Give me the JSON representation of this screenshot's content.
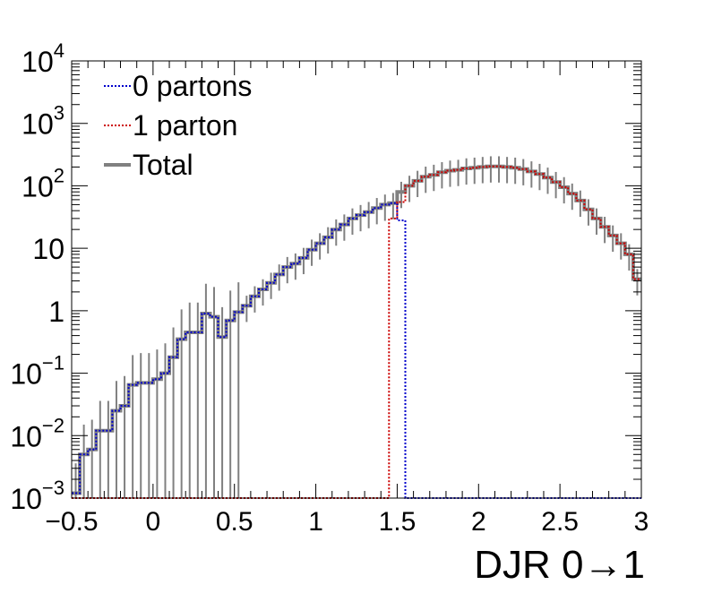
{
  "chart_data": {
    "type": "line",
    "step": true,
    "xlabel": "DJR 0→1",
    "ylabel": "",
    "title": "",
    "xlim": [
      -0.5,
      3.0
    ],
    "ylim": [
      0.001,
      10000
    ],
    "yscale": "log",
    "grid": false,
    "legend_position": "top-left",
    "bin_edges_start": -0.5,
    "bin_width": 0.05,
    "x_ticks": [
      {
        "v": -0.5,
        "label": "−0.5"
      },
      {
        "v": 0,
        "label": "0"
      },
      {
        "v": 0.5,
        "label": "0.5"
      },
      {
        "v": 1,
        "label": "1"
      },
      {
        "v": 1.5,
        "label": "1.5"
      },
      {
        "v": 2,
        "label": "2"
      },
      {
        "v": 2.5,
        "label": "2.5"
      },
      {
        "v": 3,
        "label": "3"
      }
    ],
    "y_ticks": [
      {
        "v": 0.001,
        "base": "10",
        "exp": "−3"
      },
      {
        "v": 0.01,
        "base": "10",
        "exp": "−2"
      },
      {
        "v": 0.1,
        "base": "10",
        "exp": "−1"
      },
      {
        "v": 1,
        "base": "1",
        "exp": ""
      },
      {
        "v": 10,
        "base": "10",
        "exp": ""
      },
      {
        "v": 100,
        "base": "10",
        "exp": "2"
      },
      {
        "v": 1000,
        "base": "10",
        "exp": "3"
      },
      {
        "v": 10000,
        "base": "10",
        "exp": "4"
      }
    ],
    "series": [
      {
        "name": "0 partons",
        "color": "#0000cc",
        "style": "dotted",
        "values": [
          0.0012,
          0.005,
          0.006,
          0.012,
          0.012,
          0.025,
          0.03,
          0.065,
          0.07,
          0.07,
          0.08,
          0.1,
          0.18,
          0.35,
          0.45,
          0.45,
          0.9,
          0.8,
          0.38,
          0.7,
          0.95,
          1.2,
          1.7,
          2.2,
          2.8,
          3.8,
          5.0,
          5.7,
          7.0,
          9.5,
          12,
          15,
          20,
          24,
          30,
          34,
          38,
          44,
          50,
          53,
          28,
          0.001,
          0.001,
          0.001,
          0.001,
          0.001,
          0.001,
          0.001,
          0.001,
          0.001,
          0.001,
          0.001,
          0.001,
          0.001,
          0.001,
          0.001,
          0.001,
          0.001,
          0.001,
          0.001,
          0.001,
          0.001,
          0.001,
          0.001,
          0.001,
          0.001,
          0.001,
          0.001,
          0.001,
          0.001
        ]
      },
      {
        "name": "1 parton",
        "color": "#cc0000",
        "style": "dotted",
        "values": [
          0.001,
          0.001,
          0.001,
          0.001,
          0.001,
          0.001,
          0.001,
          0.001,
          0.001,
          0.001,
          0.001,
          0.001,
          0.001,
          0.001,
          0.001,
          0.001,
          0.001,
          0.001,
          0.001,
          0.001,
          0.001,
          0.001,
          0.001,
          0.001,
          0.001,
          0.001,
          0.001,
          0.001,
          0.001,
          0.001,
          0.001,
          0.001,
          0.001,
          0.001,
          0.001,
          0.001,
          0.001,
          0.001,
          0.001,
          30,
          55,
          100,
          120,
          140,
          150,
          165,
          175,
          180,
          190,
          195,
          200,
          205,
          205,
          200,
          195,
          185,
          170,
          155,
          135,
          115,
          95,
          75,
          58,
          42,
          30,
          22,
          16,
          12,
          8,
          3.2
        ]
      },
      {
        "name": "Total",
        "color": "#808080",
        "style": "solid",
        "values": [
          0.0012,
          0.005,
          0.006,
          0.012,
          0.012,
          0.025,
          0.03,
          0.065,
          0.07,
          0.07,
          0.08,
          0.1,
          0.18,
          0.35,
          0.45,
          0.45,
          0.9,
          0.8,
          0.38,
          0.7,
          0.95,
          1.2,
          1.7,
          2.2,
          2.8,
          3.8,
          5.0,
          5.7,
          7.0,
          9.5,
          12,
          15,
          20,
          24,
          30,
          34,
          38,
          44,
          50,
          53,
          80,
          100,
          120,
          140,
          150,
          165,
          175,
          180,
          190,
          195,
          200,
          205,
          205,
          200,
          195,
          185,
          170,
          155,
          135,
          115,
          95,
          75,
          58,
          42,
          30,
          22,
          16,
          12,
          8,
          3.2
        ],
        "error_bars": true
      }
    ]
  }
}
